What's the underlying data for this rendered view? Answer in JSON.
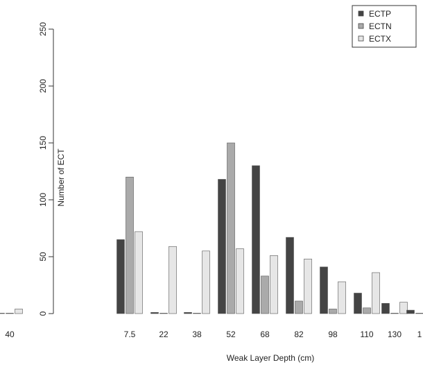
{
  "chart_data": {
    "type": "bar",
    "title": "",
    "xlabel": "Weak Layer Depth (cm)",
    "ylabel": "Number of ECT",
    "ylim": [
      0,
      270
    ],
    "yticks": [
      0,
      50,
      100,
      150,
      200,
      250
    ],
    "categories": [
      "40",
      "7.5",
      "22",
      "38",
      "52",
      "68",
      "82",
      "98",
      "110",
      "130",
      "1"
    ],
    "series": [
      {
        "name": "ECTP",
        "color": "#444444",
        "values": [
          0,
          65,
          1,
          1,
          118,
          130,
          67,
          41,
          18,
          9,
          3
        ]
      },
      {
        "name": "ECTN",
        "color": "#aaaaaa",
        "values": [
          0,
          120,
          0,
          0,
          150,
          33,
          11,
          4,
          5,
          0,
          0
        ]
      },
      {
        "name": "ECTX",
        "color": "#e6e6e6",
        "values": [
          4,
          72,
          59,
          55,
          57,
          51,
          48,
          28,
          36,
          10,
          0
        ]
      }
    ],
    "legend_position": "top-right",
    "grid": false
  }
}
